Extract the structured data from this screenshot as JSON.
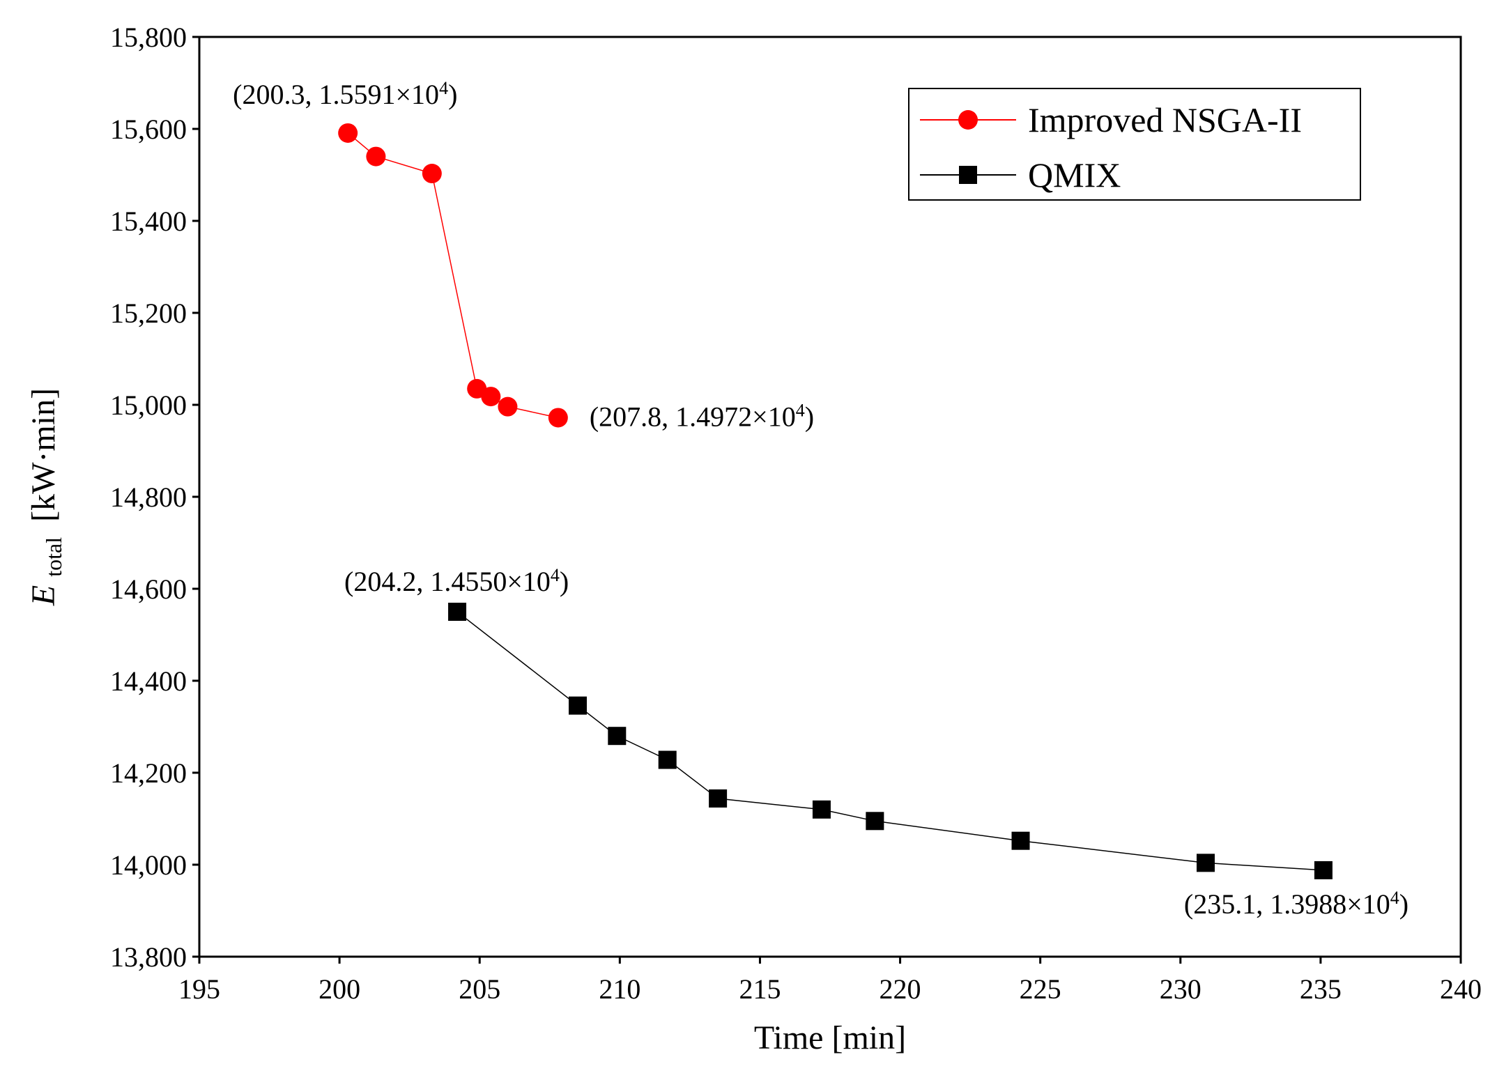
{
  "chart_data": {
    "type": "line",
    "title": "",
    "xlabel": "Time [min]",
    "ylabel": {
      "symbol": "E",
      "subscript": "total",
      "unit": "[kW·min]"
    },
    "xlim": [
      195,
      240
    ],
    "ylim": [
      13800,
      15800
    ],
    "xticks": [
      195,
      200,
      205,
      210,
      215,
      220,
      225,
      230,
      235,
      240
    ],
    "xtick_labels": [
      "195",
      "200",
      "205",
      "210",
      "215",
      "220",
      "225",
      "230",
      "235",
      "240"
    ],
    "yticks": [
      13800,
      14000,
      14200,
      14400,
      14600,
      14800,
      15000,
      15200,
      15400,
      15600,
      15800
    ],
    "ytick_labels": [
      "13,800",
      "14,000",
      "14,200",
      "14,400",
      "14,600",
      "14,800",
      "15,000",
      "15,200",
      "15,400",
      "15,600",
      "15,800"
    ],
    "grid": false,
    "legend_position": "top-right",
    "series": [
      {
        "name": "Improved NSGA-II",
        "color": "#ff0000",
        "marker": "circle",
        "x": [
          200.3,
          201.3,
          203.3,
          204.9,
          205.4,
          206.0,
          207.8
        ],
        "y": [
          15591,
          15540,
          15503,
          15035,
          15018,
          14996,
          14972
        ]
      },
      {
        "name": "QMIX",
        "color": "#000000",
        "marker": "square",
        "x": [
          204.2,
          208.5,
          209.9,
          211.7,
          213.5,
          217.2,
          219.1,
          224.3,
          230.9,
          235.1
        ],
        "y": [
          14550,
          14346,
          14280,
          14228,
          14144,
          14120,
          14095,
          14052,
          14004,
          13988
        ]
      }
    ],
    "annotations": [
      {
        "text": "(200.3, 1.5591×10",
        "sup": "4",
        "close": ")",
        "x": 200.3,
        "y": 15591
      },
      {
        "text": "(207.8, 1.4972×10",
        "sup": "4",
        "close": ")",
        "x": 207.8,
        "y": 14972
      },
      {
        "text": "(204.2, 1.4550×10",
        "sup": "4",
        "close": ")",
        "x": 204.2,
        "y": 14550
      },
      {
        "text": "(235.1, 1.3988×10",
        "sup": "4",
        "close": ")",
        "x": 235.1,
        "y": 13988
      }
    ]
  }
}
